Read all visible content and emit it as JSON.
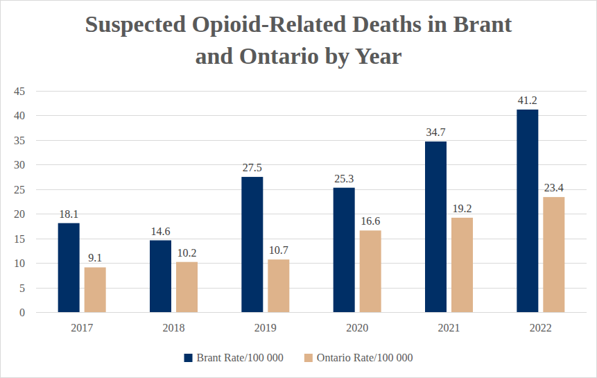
{
  "chart_data": {
    "type": "bar",
    "title": "Suspected Opioid-Related Deaths in Brant and Ontario by Year",
    "categories": [
      "2017",
      "2018",
      "2019",
      "2020",
      "2021",
      "2022"
    ],
    "series": [
      {
        "name": "Brant Rate/100 000",
        "color": "#002f66",
        "values": [
          18.1,
          14.6,
          27.5,
          25.3,
          34.7,
          41.2
        ]
      },
      {
        "name": "Ontario Rate/100 000",
        "color": "#deb38b",
        "values": [
          9.1,
          10.2,
          10.7,
          16.6,
          19.2,
          23.4
        ]
      }
    ],
    "ylim": [
      0,
      45
    ],
    "yticks": [
      0,
      5,
      10,
      15,
      20,
      25,
      30,
      35,
      40,
      45
    ],
    "grid": true,
    "data_labels": true,
    "legend": "bottom"
  }
}
